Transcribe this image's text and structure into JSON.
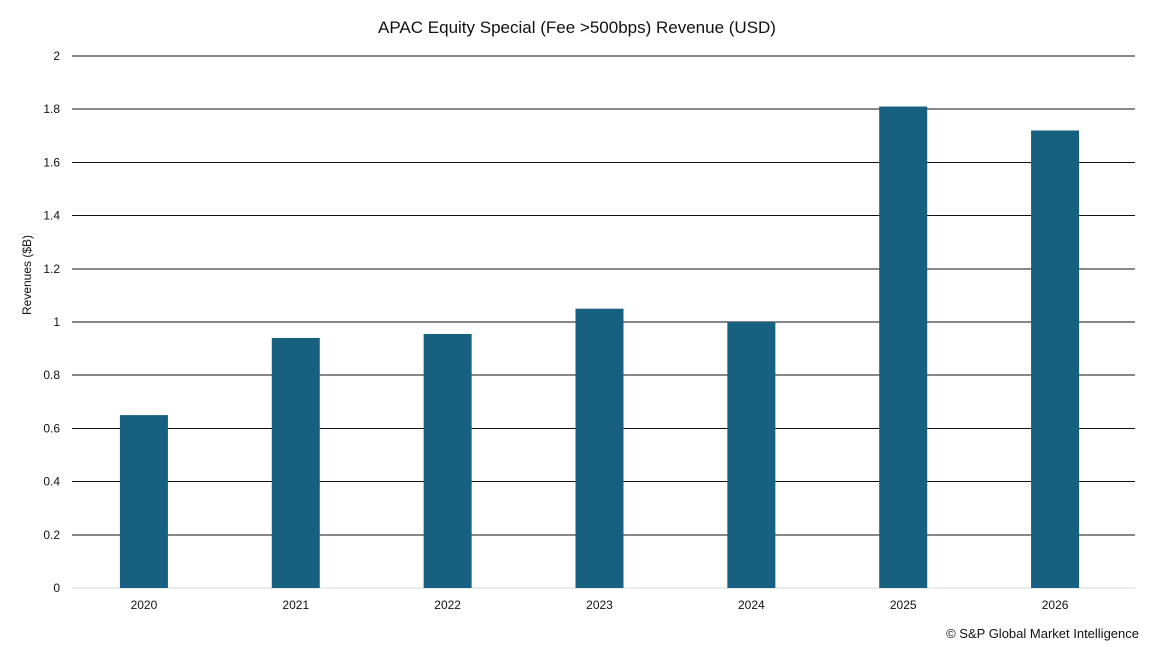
{
  "chart_data": {
    "type": "bar",
    "title": "APAC Equity Special (Fee >500bps) Revenue (USD)",
    "xlabel": "",
    "ylabel": "Revenues ($B)",
    "categories": [
      "2020",
      "2021",
      "2022",
      "2023",
      "2024",
      "2025",
      "2026"
    ],
    "values": [
      0.65,
      0.94,
      0.955,
      1.05,
      1.0,
      1.81,
      1.72
    ],
    "ylim": [
      0,
      2
    ],
    "yticks": [
      0,
      0.2,
      0.4,
      0.6,
      0.8,
      1,
      1.2,
      1.4,
      1.6,
      1.8,
      2
    ],
    "ytick_labels": [
      "0",
      "0.2",
      "0.4",
      "0.6",
      "0.8",
      "1",
      "1.2",
      "1.4",
      "1.6",
      "1.8",
      "2"
    ],
    "grid": true,
    "legend": "none",
    "bar_color": "#17607f",
    "grid_color": "#111111"
  },
  "footer": {
    "source": "© S&P Global Market Intelligence"
  }
}
